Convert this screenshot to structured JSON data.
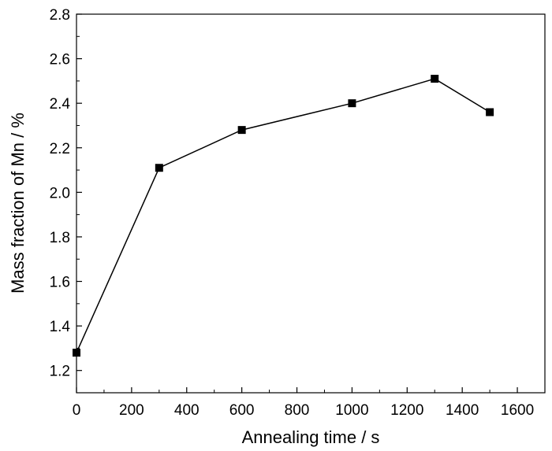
{
  "chart_data": {
    "type": "line",
    "xlabel": "Annealing time / s",
    "ylabel": "Mass fraction of Mn / %",
    "xlim": [
      0,
      1700
    ],
    "ylim": [
      1.1,
      2.8
    ],
    "xticks": [
      0,
      200,
      400,
      600,
      800,
      1000,
      1200,
      1400,
      1600
    ],
    "yticks": [
      1.2,
      1.4,
      1.6,
      1.8,
      2.0,
      2.2,
      2.4,
      2.6,
      2.8
    ],
    "xtick_labels": [
      "0",
      "200",
      "400",
      "600",
      "800",
      "1000",
      "1200",
      "1400",
      "1600"
    ],
    "ytick_labels": [
      "1.2",
      "1.4",
      "1.6",
      "1.8",
      "2.0",
      "2.2",
      "2.4",
      "2.6",
      "2.8"
    ],
    "series": [
      {
        "x": [
          0,
          300,
          600,
          1000,
          1300,
          1500
        ],
        "y": [
          1.28,
          2.11,
          2.28,
          2.4,
          2.51,
          2.36
        ],
        "marker": "square",
        "color": "#000000"
      }
    ],
    "grid": false,
    "legend": "none"
  }
}
